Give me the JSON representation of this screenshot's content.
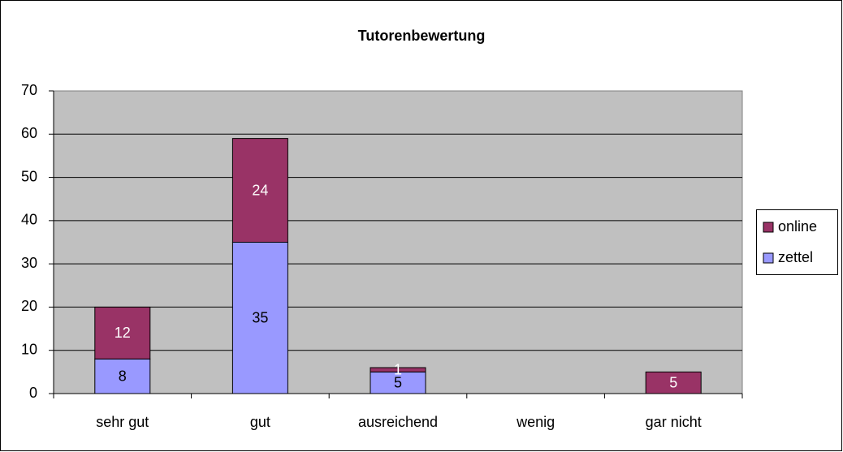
{
  "chart_data": {
    "type": "stacked_bar",
    "title": "Tutorenbewertung",
    "categories": [
      "sehr gut",
      "gut",
      "ausreichend",
      "wenig",
      "gar nicht"
    ],
    "series": [
      {
        "name": "zettel",
        "color": "#9999ff",
        "values": [
          8,
          35,
          5,
          null,
          null
        ]
      },
      {
        "name": "online",
        "color": "#993366",
        "values": [
          12,
          24,
          1,
          null,
          5
        ]
      }
    ],
    "ylim": [
      0,
      70
    ],
    "yticks": [
      0,
      10,
      20,
      30,
      40,
      50,
      60,
      70
    ],
    "grid": true,
    "legend": "right"
  }
}
